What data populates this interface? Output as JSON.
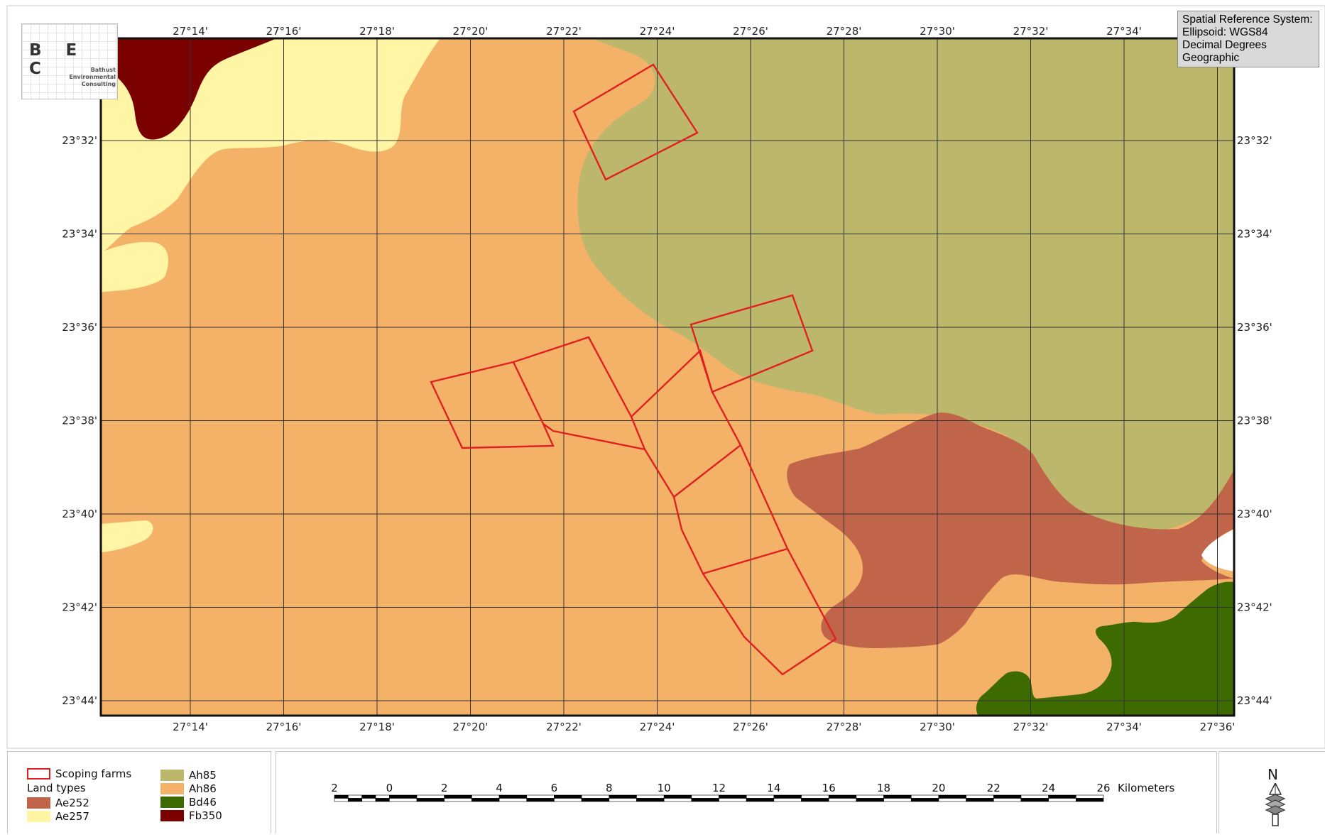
{
  "map": {
    "lon_labels": [
      "27°14'",
      "27°16'",
      "27°18'",
      "27°20'",
      "27°22'",
      "27°24'",
      "27°26'",
      "27°28'",
      "27°30'",
      "27°32'",
      "27°34'"
    ],
    "lon_labels_bottom": [
      "27°14'",
      "27°16'",
      "27°18'",
      "27°20'",
      "27°22'",
      "27°24'",
      "27°26'",
      "27°28'",
      "27°30'",
      "27°32'",
      "27°34'",
      "27°36'"
    ],
    "lat_labels": [
      "23°32'",
      "23°34'",
      "23°36'",
      "23°38'",
      "23°40'",
      "23°42'",
      "23°44'"
    ],
    "colors": {
      "Ae252": "#c0654a",
      "Ae257": "#fff5a5",
      "Ah85": "#bdb76b",
      "Ah86": "#f4b269",
      "Bd46": "#3d6b02",
      "Fb350": "#7b0000",
      "farm_outline": "#e02020",
      "grid": "#333333"
    }
  },
  "logo": {
    "letters": "B E C",
    "org_line1": "Bathust",
    "org_line2": "Environmental",
    "org_line3": "Consulting"
  },
  "srs": {
    "line1": "Spatial Reference System:",
    "line2": "Ellipsoid: WGS84",
    "line3": "Decimal Degrees",
    "line4": "Geographic"
  },
  "legend": {
    "scoping_farms": "Scoping farms",
    "land_types": "Land types",
    "items": [
      {
        "code": "Ae252",
        "color": "#c0654a"
      },
      {
        "code": "Ae257",
        "color": "#fff5a5"
      },
      {
        "code": "Ah85",
        "color": "#bdb76b"
      },
      {
        "code": "Ah86",
        "color": "#f4b269"
      },
      {
        "code": "Bd46",
        "color": "#3d6b02"
      },
      {
        "code": "Fb350",
        "color": "#7b0000"
      }
    ]
  },
  "scale_bar": {
    "labels": [
      "2",
      "0",
      "2",
      "4",
      "6",
      "8",
      "10",
      "12",
      "14",
      "16",
      "18",
      "20",
      "22",
      "24",
      "26"
    ],
    "unit": "Kilometers"
  },
  "north_arrow": {
    "label": "N",
    "icon": "north-arrow-icon"
  }
}
